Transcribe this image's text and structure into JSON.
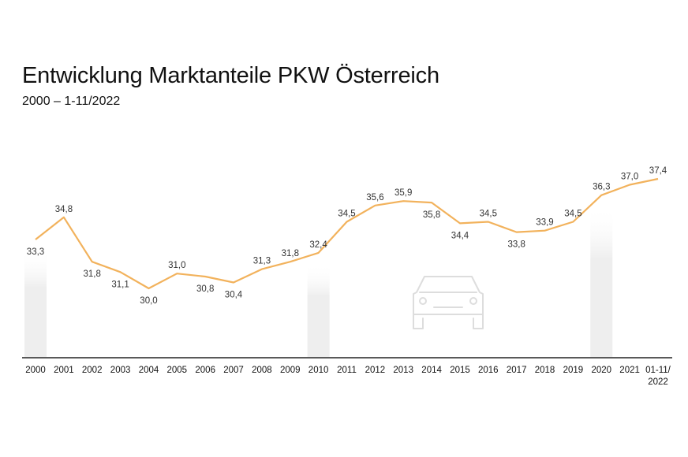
{
  "chart_data": {
    "type": "line",
    "title": "Entwicklung Marktanteile PKW Österreich",
    "subtitle": "2000 – 1-11/2022",
    "categories": [
      "2000",
      "2001",
      "2002",
      "2003",
      "2004",
      "2005",
      "2006",
      "2007",
      "2008",
      "2009",
      "2010",
      "2011",
      "2012",
      "2013",
      "2014",
      "2015",
      "2016",
      "2017",
      "2018",
      "2019",
      "2020",
      "2021",
      "01-11/ 2022"
    ],
    "series": [
      {
        "values": [
          33.3,
          34.8,
          31.8,
          31.1,
          30.0,
          31.0,
          30.8,
          30.4,
          31.3,
          31.8,
          32.4,
          34.5,
          35.6,
          35.9,
          35.8,
          34.4,
          34.5,
          33.8,
          33.9,
          34.5,
          36.3,
          37.0,
          37.4
        ],
        "labels": [
          "33,3",
          "34,8",
          "31,8",
          "31,1",
          "30,0",
          "31,0",
          "30,8",
          "30,4",
          "31,3",
          "31,8",
          "32,4",
          "34,5",
          "35,6",
          "35,9",
          "35,8",
          "34,4",
          "34,5",
          "33,8",
          "33,9",
          "34,5",
          "36,3",
          "37,0",
          "37,4"
        ]
      }
    ],
    "highlighted_categories": [
      "2000",
      "2010",
      "2020"
    ],
    "line_color": "#F2B25C",
    "highlight_color": "#EEEEEE",
    "axis_color": "#222222",
    "icon": "car-icon",
    "grid": false,
    "legend": "none"
  }
}
